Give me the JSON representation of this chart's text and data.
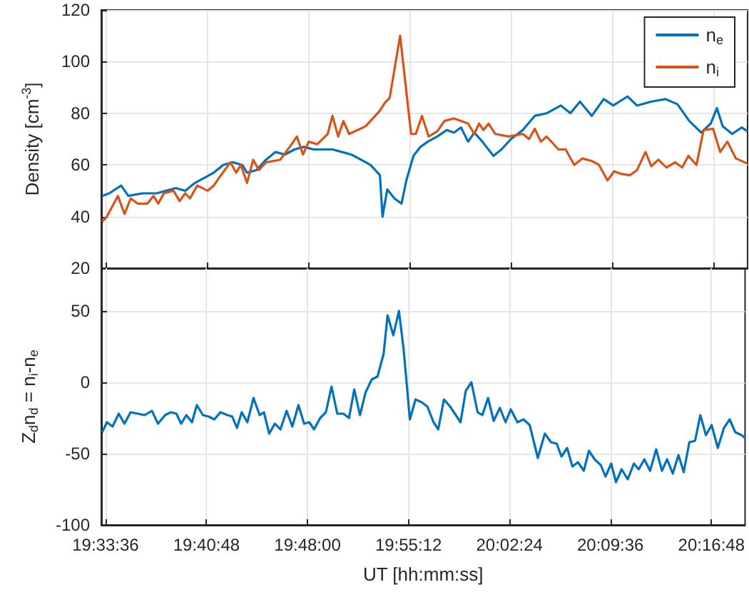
{
  "chart_data": [
    {
      "type": "line",
      "ylabel": "Density [cm$^{-3}$]",
      "xlim": [
        19.555,
        20.32
      ],
      "ylim": [
        20,
        120
      ],
      "xticks": [
        {
          "value": 19.56,
          "label": null
        },
        {
          "value": 19.68,
          "label": null
        },
        {
          "value": 19.8,
          "label": null
        },
        {
          "value": 19.92,
          "label": null
        },
        {
          "value": 20.04,
          "label": null
        },
        {
          "value": 20.16,
          "label": null
        },
        {
          "value": 20.28,
          "label": null
        }
      ],
      "yticks": [
        20,
        40,
        60,
        80,
        100,
        120
      ],
      "tick_labels": "y",
      "grid": true,
      "legend": "top right",
      "marker": "none",
      "series": [
        {
          "name": "n$_{e}$",
          "color": "#0072bd",
          "x": [
            19.556,
            19.5645,
            19.5785,
            19.587,
            19.6038,
            19.6207,
            19.6319,
            19.6432,
            19.6544,
            19.6657,
            19.6769,
            19.6881,
            19.6994,
            19.7106,
            19.7219,
            19.7275,
            19.7387,
            19.75,
            19.7612,
            19.7724,
            19.7837,
            19.7949,
            19.8062,
            19.8174,
            19.8286,
            19.8399,
            19.8511,
            19.8624,
            19.8736,
            19.8848,
            19.8879,
            19.8935,
            19.902,
            19.9104,
            19.9161,
            19.9245,
            19.9329,
            19.9414,
            19.9527,
            19.9639,
            19.9724,
            19.9808,
            19.9892,
            19.9966,
            20.0061,
            20.0191,
            20.0287,
            20.0399,
            20.054,
            20.0681,
            20.0821,
            20.099,
            20.1103,
            20.1216,
            20.1356,
            20.1497,
            20.161,
            20.1779,
            20.1891,
            20.206,
            20.2229,
            20.237,
            20.251,
            20.2651,
            20.2764,
            20.2837,
            20.2905,
            20.3017,
            20.313,
            20.32
          ],
          "values": [
            48,
            49,
            52,
            48,
            49,
            49,
            50,
            51,
            50,
            53,
            55,
            57,
            60,
            61,
            60,
            57,
            58,
            62,
            65,
            64,
            66,
            67,
            66,
            66,
            66,
            65,
            64,
            62,
            60,
            56,
            40,
            50.5,
            47,
            45,
            54,
            63.5,
            67,
            69,
            71,
            73.5,
            72.5,
            74.5,
            69,
            72.5,
            69,
            63.5,
            66,
            70,
            73.5,
            79,
            80,
            83,
            80,
            84.5,
            79,
            85.5,
            83,
            86.5,
            83,
            84.5,
            85.5,
            83.5,
            77,
            72.5,
            76,
            82,
            75,
            72,
            74.5,
            73
          ]
        },
        {
          "name": "n$_{i}$",
          "color": "#d95319",
          "x": [
            19.556,
            19.5617,
            19.5746,
            19.5825,
            19.5898,
            19.5982,
            19.6095,
            19.6168,
            19.6224,
            19.6291,
            19.6404,
            19.6477,
            19.6544,
            19.66,
            19.6685,
            19.6808,
            19.6881,
            19.6966,
            19.7078,
            19.7146,
            19.7202,
            19.7275,
            19.7348,
            19.7415,
            19.75,
            19.7668,
            19.7781,
            19.7865,
            19.7938,
            19.8005,
            19.8107,
            19.823,
            19.8286,
            19.8354,
            19.8416,
            19.8483,
            19.868,
            19.8848,
            19.8905,
            19.8964,
            19.9087,
            19.9217,
            19.9273,
            19.9346,
            19.9425,
            19.9527,
            19.9611,
            19.9724,
            19.9892,
            19.9966,
            20.0022,
            20.0073,
            20.0135,
            20.0213,
            20.0371,
            20.054,
            20.0613,
            20.0681,
            20.0754,
            20.0821,
            20.0962,
            20.1047,
            20.1148,
            20.1244,
            20.1356,
            20.1441,
            20.1542,
            20.1621,
            20.1705,
            20.1807,
            20.1891,
            20.1992,
            20.206,
            20.2144,
            20.224,
            20.2342,
            20.2426,
            20.2499,
            20.2595,
            20.2679,
            20.2792,
            20.2876,
            20.2961,
            20.3062,
            20.32
          ],
          "values": [
            38,
            40,
            48,
            41,
            47,
            45,
            45,
            48,
            45,
            49,
            50,
            46,
            49,
            47,
            52,
            50,
            52,
            56,
            61,
            57,
            60,
            53,
            62,
            58,
            61,
            62,
            67,
            71,
            64,
            69,
            68,
            72,
            79,
            71,
            77,
            72,
            75,
            81,
            84,
            86,
            110,
            72,
            72,
            79,
            71,
            73,
            77,
            78,
            76,
            72,
            76,
            73.5,
            76,
            72,
            71,
            72,
            70,
            74,
            69,
            71,
            66,
            66,
            60,
            62.5,
            61.5,
            60,
            54,
            57.5,
            56.5,
            56,
            58,
            65,
            59.5,
            62,
            59,
            61,
            59,
            63.5,
            60,
            73.5,
            74,
            65,
            69,
            62.5,
            60.5
          ]
        }
      ]
    },
    {
      "type": "line",
      "ylabel": "Z$_{d}$n$_{d}$ = n$_{i}$-n$_{e}$",
      "xlabel": "UT [hh:mm:ss]",
      "xlim": [
        19.555,
        20.32
      ],
      "ylim": [
        -100,
        80
      ],
      "xticks": [
        {
          "value": 19.56,
          "label": "19:33:36"
        },
        {
          "value": 19.68,
          "label": "19:40:48"
        },
        {
          "value": 19.8,
          "label": "19:48:00"
        },
        {
          "value": 19.92,
          "label": "19:55:12"
        },
        {
          "value": 20.04,
          "label": "20:02:24"
        },
        {
          "value": 20.16,
          "label": "20:09:36"
        },
        {
          "value": 20.28,
          "label": "20:16:48"
        }
      ],
      "yticks": [
        -100,
        -50,
        0,
        50
      ],
      "grid": true,
      "marker": "none",
      "series": [
        {
          "color": "#0072bd",
          "x": [
            19.556,
            19.5617,
            19.5684,
            19.5757,
            19.5825,
            19.5898,
            19.5982,
            19.6066,
            19.6151,
            19.6224,
            19.6308,
            19.6376,
            19.6443,
            19.6499,
            19.6561,
            19.6628,
            19.6685,
            19.6758,
            19.6825,
            19.6893,
            19.6966,
            19.705,
            19.7106,
            19.7162,
            19.7219,
            19.7286,
            19.7359,
            19.7432,
            19.7483,
            19.7545,
            19.7612,
            19.7679,
            19.7752,
            19.782,
            19.7893,
            19.796,
            19.8022,
            19.8078,
            19.8151,
            19.8219,
            19.8286,
            19.8354,
            19.8427,
            19.8494,
            19.8556,
            19.8624,
            19.8691,
            19.8764,
            19.8832,
            19.8905,
            19.8952,
            19.902,
            19.9087,
            19.9143,
            19.9217,
            19.9284,
            19.9357,
            19.9425,
            19.9498,
            19.9554,
            19.9622,
            19.9695,
            19.9763,
            19.9819,
            19.9881,
            19.9948,
            20.0022,
            20.0078,
            20.0146,
            20.0213,
            20.0286,
            20.0354,
            20.0416,
            20.0495,
            20.0568,
            20.0641,
            20.0737,
            20.0821,
            20.0894,
            20.0962,
            20.1018,
            20.1086,
            20.1148,
            20.1215,
            20.1283,
            20.1345,
            20.1412,
            20.1485,
            20.1542,
            20.1609,
            20.1666,
            20.1733,
            20.1806,
            20.1879,
            20.1936,
            20.2003,
            20.2071,
            20.2144,
            20.2212,
            20.2274,
            20.2341,
            20.2409,
            20.2471,
            20.2538,
            20.2606,
            20.2668,
            20.2735,
            20.2803,
            20.2876,
            20.2949,
            20.3017,
            20.3084,
            20.3158,
            20.32
          ],
          "values": [
            -35,
            -28,
            -31,
            -22,
            -29,
            -21,
            -22,
            -23,
            -20,
            -29,
            -23,
            -21,
            -22,
            -29,
            -23,
            -28,
            -16,
            -23,
            -24,
            -26,
            -21,
            -23,
            -24,
            -32,
            -21,
            -28,
            -11,
            -23,
            -21,
            -36,
            -29,
            -33,
            -20,
            -31,
            -16,
            -29,
            -28,
            -33,
            -25,
            -21,
            -3,
            -22,
            -22,
            -25,
            -5,
            -23,
            -7,
            2,
            4,
            20,
            47,
            33,
            50,
            23,
            -26,
            -12,
            -14,
            -17,
            -28,
            -33,
            -12,
            -17,
            -23,
            -28,
            -6,
            0,
            -21,
            -23,
            -11,
            -27,
            -18,
            -28,
            -19,
            -28,
            -26,
            -30,
            -53,
            -36,
            -42,
            -43,
            -52,
            -46,
            -59,
            -56,
            -62,
            -48,
            -54,
            -58,
            -66,
            -57,
            -70,
            -61,
            -68,
            -57,
            -61,
            -54,
            -62,
            -47,
            -62,
            -54,
            -64,
            -51,
            -63,
            -42,
            -41,
            -23,
            -37,
            -30,
            -46,
            -32,
            -26,
            -35,
            -37,
            -39
          ]
        }
      ]
    }
  ]
}
